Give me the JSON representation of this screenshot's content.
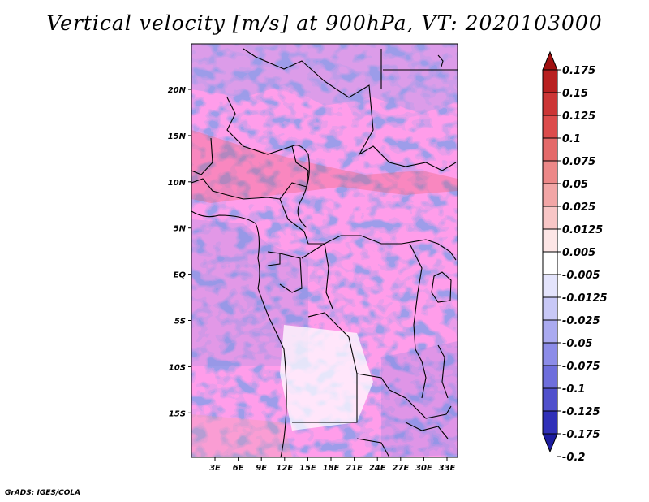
{
  "title": "Vertical velocity [m/s] at 900hPa, VT: 2020103000",
  "footer": "GrADS: IGES/COLA",
  "map": {
    "lat_ticks": [
      {
        "label": "20N",
        "value": 20
      },
      {
        "label": "15N",
        "value": 15
      },
      {
        "label": "10N",
        "value": 10
      },
      {
        "label": "5N",
        "value": 5
      },
      {
        "label": "EQ",
        "value": 0
      },
      {
        "label": "5S",
        "value": -5
      },
      {
        "label": "10S",
        "value": -10
      },
      {
        "label": "15S",
        "value": -15
      }
    ],
    "lon_ticks": [
      {
        "label": "3E",
        "value": 3
      },
      {
        "label": "6E",
        "value": 6
      },
      {
        "label": "9E",
        "value": 9
      },
      {
        "label": "12E",
        "value": 12
      },
      {
        "label": "15E",
        "value": 15
      },
      {
        "label": "18E",
        "value": 18
      },
      {
        "label": "21E",
        "value": 21
      },
      {
        "label": "24E",
        "value": 24
      },
      {
        "label": "27E",
        "value": 27
      },
      {
        "label": "30E",
        "value": 30
      },
      {
        "label": "33E",
        "value": 33
      }
    ]
  },
  "colorbar": {
    "labels": [
      "0.175",
      "0.15",
      "0.125",
      "0.1",
      "0.075",
      "0.05",
      "0.025",
      "0.0125",
      "0.005",
      "-0.005",
      "-0.0125",
      "-0.025",
      "-0.05",
      "-0.075",
      "-0.1",
      "-0.125",
      "-0.175",
      "-0.2"
    ],
    "colors": [
      "#a01010",
      "#b82020",
      "#cc3636",
      "#dc4c4c",
      "#e46a6a",
      "#ec8888",
      "#f2a6a6",
      "#f8c6c6",
      "#fde6e6",
      "#ffffff",
      "#e4e4fc",
      "#c8c8f6",
      "#aaaaf0",
      "#8c8ce8",
      "#6e6edc",
      "#5050cc",
      "#3030b8",
      "#1c1ca0"
    ]
  }
}
